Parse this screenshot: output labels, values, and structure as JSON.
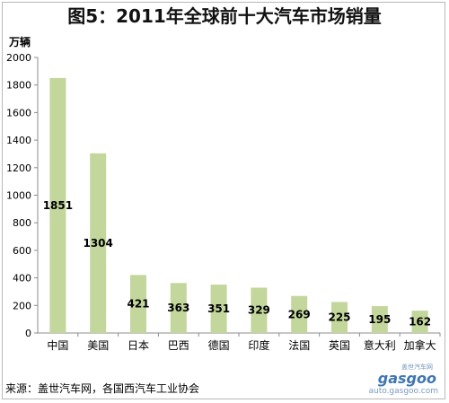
{
  "chart_data": {
    "type": "bar",
    "title": "图5：2011年全球前十大汽车市场销量",
    "ylabel": "万辆",
    "xlabel": "",
    "ylim": [
      0,
      2000
    ],
    "yticks": [
      "0",
      "200",
      "400",
      "600",
      "800",
      "1000",
      "1200",
      "1400",
      "1600",
      "1800",
      "2000"
    ],
    "categories": [
      "中国",
      "美国",
      "日本",
      "巴西",
      "德国",
      "印度",
      "法国",
      "英国",
      "意大利",
      "加拿大"
    ],
    "values": [
      1851,
      1304,
      421,
      363,
      351,
      329,
      269,
      225,
      195,
      162
    ],
    "bar_color": "#c3d69b",
    "grid": false,
    "legend": "none"
  },
  "source": "来源：盖世汽车网，各国西汽车工业协会",
  "watermark": {
    "chinese": "盖世汽车网",
    "logo": "gasgoo",
    "url": "auto.gasgoo.com"
  }
}
